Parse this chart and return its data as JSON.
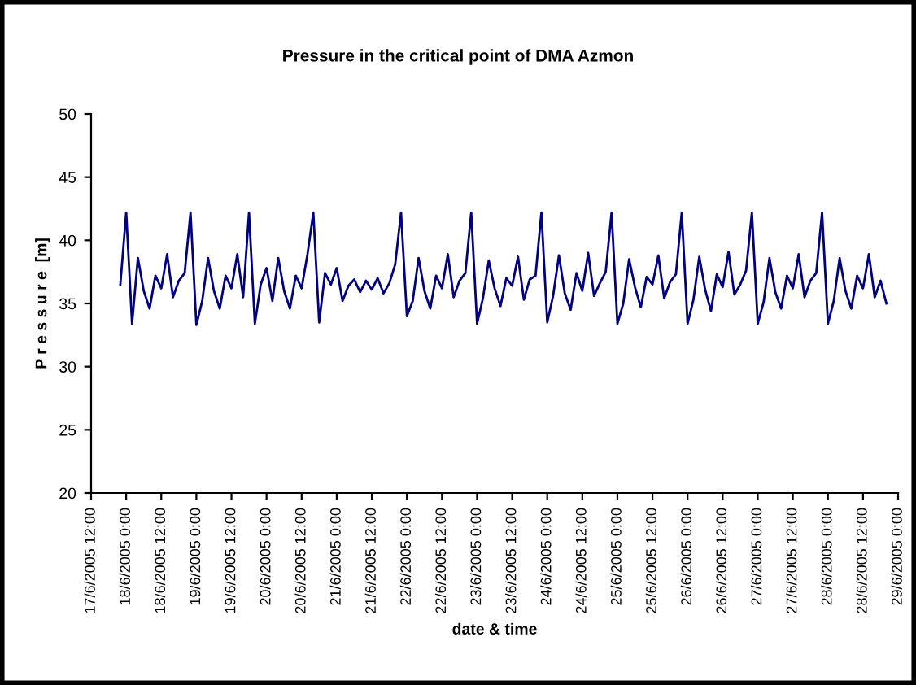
{
  "chart_data": {
    "type": "line",
    "title": "Pressure in the critical point of DMA Azmon",
    "xlabel": "date & time",
    "ylabel": "P r e s s u r e  [m]",
    "xlim": [
      "2005-06-17T12:00",
      "2005-06-29T00:00"
    ],
    "xticks": [
      {
        "value": "2005-06-17T12:00",
        "label": "17/6/2005 12:00"
      },
      {
        "value": "2005-06-18T00:00",
        "label": "18/6/2005 0:00"
      },
      {
        "value": "2005-06-18T12:00",
        "label": "18/6/2005 12:00"
      },
      {
        "value": "2005-06-19T00:00",
        "label": "19/6/2005 0:00"
      },
      {
        "value": "2005-06-19T12:00",
        "label": "19/6/2005 12:00"
      },
      {
        "value": "2005-06-20T00:00",
        "label": "20/6/2005 0:00"
      },
      {
        "value": "2005-06-20T12:00",
        "label": "20/6/2005 12:00"
      },
      {
        "value": "2005-06-21T00:00",
        "label": "21/6/2005 0:00"
      },
      {
        "value": "2005-06-21T12:00",
        "label": "21/6/2005 12:00"
      },
      {
        "value": "2005-06-22T00:00",
        "label": "22/6/2005 0:00"
      },
      {
        "value": "2005-06-22T12:00",
        "label": "22/6/2005 12:00"
      },
      {
        "value": "2005-06-23T00:00",
        "label": "23/6/2005 0:00"
      },
      {
        "value": "2005-06-23T12:00",
        "label": "23/6/2005 12:00"
      },
      {
        "value": "2005-06-24T00:00",
        "label": "24/6/2005 0:00"
      },
      {
        "value": "2005-06-24T12:00",
        "label": "24/6/2005 12:00"
      },
      {
        "value": "2005-06-25T00:00",
        "label": "25/6/2005 0:00"
      },
      {
        "value": "2005-06-25T12:00",
        "label": "25/6/2005 12:00"
      },
      {
        "value": "2005-06-26T00:00",
        "label": "26/6/2005 0:00"
      },
      {
        "value": "2005-06-26T12:00",
        "label": "26/6/2005 12:00"
      },
      {
        "value": "2005-06-27T00:00",
        "label": "27/6/2005 0:00"
      },
      {
        "value": "2005-06-27T12:00",
        "label": "27/6/2005 12:00"
      },
      {
        "value": "2005-06-28T00:00",
        "label": "28/6/2005 0:00"
      },
      {
        "value": "2005-06-28T12:00",
        "label": "28/6/2005 12:00"
      },
      {
        "value": "2005-06-29T00:00",
        "label": "29/6/2005 0:00"
      }
    ],
    "ylim": [
      20,
      50
    ],
    "yticks": [
      20,
      25,
      30,
      35,
      40,
      45,
      50
    ],
    "grid": false,
    "marker": "none",
    "line_style": "solid",
    "x": [
      "2005-06-17T22:00",
      "2005-06-18T00:00",
      "2005-06-18T02:00",
      "2005-06-18T04:00",
      "2005-06-18T06:00",
      "2005-06-18T08:00",
      "2005-06-18T10:00",
      "2005-06-18T12:00",
      "2005-06-18T14:00",
      "2005-06-18T16:00",
      "2005-06-18T18:00",
      "2005-06-18T20:00",
      "2005-06-18T22:00",
      "2005-06-19T00:00",
      "2005-06-19T02:00",
      "2005-06-19T04:00",
      "2005-06-19T06:00",
      "2005-06-19T08:00",
      "2005-06-19T10:00",
      "2005-06-19T12:00",
      "2005-06-19T14:00",
      "2005-06-19T16:00",
      "2005-06-19T18:00",
      "2005-06-19T20:00",
      "2005-06-19T22:00",
      "2005-06-20T00:00",
      "2005-06-20T02:00",
      "2005-06-20T04:00",
      "2005-06-20T06:00",
      "2005-06-20T08:00",
      "2005-06-20T10:00",
      "2005-06-20T12:00",
      "2005-06-20T14:00",
      "2005-06-20T16:00",
      "2005-06-20T18:00",
      "2005-06-20T20:00",
      "2005-06-20T22:00",
      "2005-06-21T00:00",
      "2005-06-21T02:00",
      "2005-06-21T04:00",
      "2005-06-21T06:00",
      "2005-06-21T08:00",
      "2005-06-21T10:00",
      "2005-06-21T12:00",
      "2005-06-21T14:00",
      "2005-06-21T16:00",
      "2005-06-21T18:00",
      "2005-06-21T20:00",
      "2005-06-21T22:00",
      "2005-06-22T00:00",
      "2005-06-22T02:00",
      "2005-06-22T04:00",
      "2005-06-22T06:00",
      "2005-06-22T08:00",
      "2005-06-22T10:00",
      "2005-06-22T12:00",
      "2005-06-22T14:00",
      "2005-06-22T16:00",
      "2005-06-22T18:00",
      "2005-06-22T20:00",
      "2005-06-22T22:00",
      "2005-06-23T00:00",
      "2005-06-23T02:00",
      "2005-06-23T04:00",
      "2005-06-23T06:00",
      "2005-06-23T08:00",
      "2005-06-23T10:00",
      "2005-06-23T12:00",
      "2005-06-23T14:00",
      "2005-06-23T16:00",
      "2005-06-23T18:00",
      "2005-06-23T20:00",
      "2005-06-23T22:00",
      "2005-06-24T00:00",
      "2005-06-24T02:00",
      "2005-06-24T04:00",
      "2005-06-24T06:00",
      "2005-06-24T08:00",
      "2005-06-24T10:00",
      "2005-06-24T12:00",
      "2005-06-24T14:00",
      "2005-06-24T16:00",
      "2005-06-24T18:00",
      "2005-06-24T20:00",
      "2005-06-24T22:00",
      "2005-06-25T00:00",
      "2005-06-25T02:00",
      "2005-06-25T04:00",
      "2005-06-25T06:00",
      "2005-06-25T08:00",
      "2005-06-25T10:00",
      "2005-06-25T12:00",
      "2005-06-25T14:00",
      "2005-06-25T16:00",
      "2005-06-25T18:00",
      "2005-06-25T20:00",
      "2005-06-25T22:00",
      "2005-06-26T00:00",
      "2005-06-26T02:00",
      "2005-06-26T04:00",
      "2005-06-26T06:00",
      "2005-06-26T08:00",
      "2005-06-26T10:00",
      "2005-06-26T12:00",
      "2005-06-26T14:00",
      "2005-06-26T16:00",
      "2005-06-26T18:00",
      "2005-06-26T20:00",
      "2005-06-26T22:00",
      "2005-06-27T00:00",
      "2005-06-27T02:00",
      "2005-06-27T04:00",
      "2005-06-27T06:00",
      "2005-06-27T08:00",
      "2005-06-27T10:00",
      "2005-06-27T12:00",
      "2005-06-27T14:00",
      "2005-06-27T16:00",
      "2005-06-27T18:00",
      "2005-06-27T20:00",
      "2005-06-27T22:00",
      "2005-06-28T00:00",
      "2005-06-28T02:00",
      "2005-06-28T04:00",
      "2005-06-28T06:00",
      "2005-06-28T08:00",
      "2005-06-28T10:00",
      "2005-06-28T12:00",
      "2005-06-28T14:00",
      "2005-06-28T16:00",
      "2005-06-28T18:00",
      "2005-06-28T20:00"
    ],
    "series": [
      {
        "color": "#000080",
        "values": [
          36.5,
          42.2,
          33.4,
          38.6,
          36.0,
          34.6,
          37.2,
          36.2,
          38.9,
          35.5,
          36.8,
          37.4,
          42.2,
          33.3,
          35.2,
          38.6,
          36.0,
          34.6,
          37.2,
          36.2,
          38.9,
          35.5,
          42.2,
          33.4,
          36.5,
          37.8,
          35.2,
          38.6,
          36.0,
          34.6,
          37.2,
          36.2,
          38.9,
          42.2,
          33.5,
          37.4,
          36.5,
          37.8,
          35.2,
          36.4,
          36.9,
          35.9,
          36.8,
          36.1,
          37.0,
          35.8,
          36.6,
          38.1,
          42.2,
          34.0,
          35.2,
          38.6,
          36.0,
          34.6,
          37.2,
          36.2,
          38.9,
          35.5,
          36.8,
          37.4,
          42.2,
          33.4,
          35.4,
          38.4,
          36.2,
          34.8,
          37.0,
          36.4,
          38.7,
          35.3,
          36.9,
          37.2,
          42.2,
          33.5,
          35.6,
          38.8,
          35.8,
          34.5,
          37.4,
          36.0,
          39.0,
          35.6,
          36.6,
          37.5,
          42.2,
          33.4,
          35.0,
          38.5,
          36.3,
          34.7,
          37.1,
          36.5,
          38.8,
          35.4,
          36.7,
          37.3,
          42.2,
          33.4,
          35.3,
          38.7,
          36.1,
          34.4,
          37.3,
          36.3,
          39.1,
          35.7,
          36.5,
          37.6,
          42.2,
          33.4,
          35.1,
          38.6,
          35.9,
          34.6,
          37.2,
          36.2,
          38.9,
          35.5,
          36.8,
          37.4,
          42.2,
          33.4,
          35.2,
          38.6,
          36.0,
          34.6,
          37.2,
          36.2,
          38.9,
          35.5,
          36.8,
          35.0
        ]
      }
    ]
  }
}
